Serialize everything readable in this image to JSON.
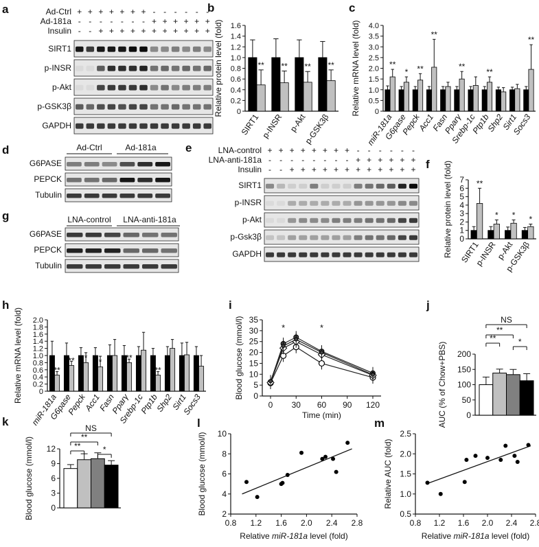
{
  "colors": {
    "black": "#000000",
    "gray": "#c0c0c0",
    "darkgray": "#808080",
    "white": "#ffffff"
  },
  "panel_labels": [
    "a",
    "b",
    "c",
    "d",
    "e",
    "f",
    "g",
    "h",
    "i",
    "j",
    "k",
    "l",
    "m"
  ],
  "blots": {
    "a": {
      "rows": [
        "Ad-Ctrl",
        "Ad-181a",
        "Insulin"
      ],
      "signs": [
        [
          "+",
          "+",
          "+",
          "+",
          "+",
          "+",
          "+",
          "-",
          "-",
          "-",
          "-",
          "-",
          "-"
        ],
        [
          "-",
          "-",
          "-",
          "-",
          "-",
          "-",
          "-",
          "+",
          "+",
          "+",
          "+",
          "+",
          "+"
        ],
        [
          "-",
          "-",
          "+",
          "+",
          "+",
          "+",
          "+",
          "+",
          "+",
          "+",
          "+",
          "+",
          "+"
        ]
      ],
      "bands": [
        "SIRT1",
        "p-INSR",
        "p-Akt",
        "p-GSK3β",
        "GAPDH"
      ]
    },
    "d": {
      "groups": [
        "Ad-Ctrl",
        "Ad-181a"
      ],
      "bands": [
        "G6PASE",
        "PEPCK",
        "Tubulin"
      ]
    },
    "e": {
      "rows": [
        "LNA-control",
        "LNA-anti-181a",
        "Insulin"
      ],
      "signs": [
        [
          "+",
          "+",
          "+",
          "+",
          "+",
          "+",
          "+",
          "+",
          "-",
          "-",
          "-",
          "-",
          "-",
          "-"
        ],
        [
          "-",
          "-",
          "-",
          "-",
          "-",
          "-",
          "-",
          "-",
          "+",
          "+",
          "+",
          "+",
          "+",
          "+"
        ],
        [
          "-",
          "-",
          "+",
          "+",
          "+",
          "+",
          "+",
          "+",
          "+",
          "+",
          "+",
          "+",
          "+",
          "+"
        ]
      ],
      "bands": [
        "SIRT1",
        "p-INSR",
        "p-Akt",
        "p-Gsk3β",
        "GAPDH"
      ]
    },
    "g": {
      "groups": [
        "LNA-control",
        "LNA-anti-181a"
      ],
      "bands": [
        "G6PASE",
        "PEPCK",
        "Tubulin"
      ]
    }
  },
  "chart_data": [
    {
      "id": "b",
      "type": "bar",
      "ylabel": "Relative protein level (fold)",
      "ylim": [
        0,
        1.6
      ],
      "yticks": [
        "0",
        "0.2",
        "0.4",
        "0.6",
        "0.8",
        "1.0",
        "1.2",
        "1.4",
        "1.6"
      ],
      "categories": [
        "SIRT1",
        "p-INSR",
        "p-Akt",
        "p-GSK3β"
      ],
      "series": [
        {
          "values": [
            1.0,
            1.0,
            1.0,
            1.0
          ],
          "err": [
            0.33,
            0.35,
            0.33,
            0.3
          ]
        },
        {
          "values": [
            0.49,
            0.53,
            0.54,
            0.57
          ],
          "err": [
            0.28,
            0.22,
            0.2,
            0.2
          ]
        }
      ],
      "stars": [
        "**",
        "**",
        "**",
        "**"
      ]
    },
    {
      "id": "c",
      "type": "bar",
      "ylabel": "Relative mRNA level (fold)",
      "ylim": [
        0,
        4.0
      ],
      "yticks": [
        "0",
        "0.5",
        "1.0",
        "1.5",
        "2.0",
        "2.5",
        "3.0",
        "3.5",
        "4.0"
      ],
      "categories": [
        "miR-181a",
        "G6pase",
        "Pepck",
        "Acc1",
        "Fasn",
        "Pparγ",
        "Srebp-1c",
        "Ptp1b",
        "Shp2",
        "Sirt1",
        "Socs3"
      ],
      "italic": true,
      "series": [
        {
          "values": [
            1.0,
            1.0,
            1.0,
            1.0,
            1.0,
            1.0,
            1.0,
            1.0,
            1.0,
            1.0,
            1.0
          ],
          "err": [
            0.18,
            0.15,
            0.15,
            0.15,
            0.15,
            0.15,
            0.15,
            0.15,
            0.12,
            0.12,
            0.15
          ]
        },
        {
          "values": [
            1.6,
            1.35,
            1.45,
            2.05,
            1.15,
            1.5,
            1.2,
            1.35,
            0.9,
            1.05,
            1.95
          ],
          "err": [
            0.35,
            0.25,
            0.3,
            1.3,
            0.2,
            0.35,
            0.4,
            0.25,
            0.2,
            0.2,
            1.15
          ]
        }
      ],
      "stars": [
        "**",
        "*",
        "**",
        "**",
        "",
        "**",
        "",
        "**",
        "",
        "",
        "**"
      ]
    },
    {
      "id": "f",
      "type": "bar",
      "ylabel": "Relative protein level (fold)",
      "ylim": [
        0,
        7
      ],
      "yticks": [
        "0",
        "1",
        "2",
        "3",
        "4",
        "5",
        "6",
        "7"
      ],
      "categories": [
        "SIRT1",
        "p-INSR",
        "p-Akt",
        "p-GSK3β"
      ],
      "series": [
        {
          "values": [
            1.0,
            1.0,
            1.0,
            1.0
          ],
          "err": [
            0.45,
            0.45,
            0.4,
            0.35
          ]
        },
        {
          "values": [
            4.2,
            1.75,
            1.85,
            1.45
          ],
          "err": [
            1.8,
            0.5,
            0.4,
            0.3
          ]
        }
      ],
      "stars": [
        "**",
        "*",
        "*",
        "*"
      ]
    },
    {
      "id": "h",
      "type": "bar",
      "ylabel": "Relative mRNA level (fold)",
      "ylim": [
        0,
        2.0
      ],
      "yticks": [
        "0",
        "0.2",
        "0.4",
        "0.6",
        "0.8",
        "1.0",
        "1.2",
        "1.4",
        "1.6",
        "1.8",
        "2.0"
      ],
      "categories": [
        "miR-181a",
        "G6pase",
        "Pepck",
        "Acc1",
        "Fasn",
        "Pparγ",
        "Srebp-1c",
        "Ptp1b",
        "Shp2",
        "Sirt1",
        "Socs3"
      ],
      "italic": true,
      "series": [
        {
          "values": [
            1.0,
            1.0,
            1.0,
            1.0,
            1.0,
            1.0,
            1.0,
            1.0,
            1.0,
            1.0,
            1.0
          ],
          "err": [
            0.4,
            0.35,
            0.22,
            0.22,
            0.3,
            0.28,
            0.25,
            0.2,
            0.25,
            0.35,
            0.25
          ]
        },
        {
          "values": [
            0.45,
            0.72,
            0.8,
            0.68,
            1.0,
            0.8,
            1.15,
            0.45,
            1.2,
            1.02,
            0.7
          ],
          "err": [
            0.1,
            0.12,
            0.28,
            0.3,
            0.45,
            0.1,
            0.5,
            0.1,
            0.25,
            0.35,
            0.3
          ]
        }
      ],
      "stars": [
        "**",
        "**",
        "*",
        "*",
        "",
        "**",
        "",
        "**",
        "",
        "",
        ""
      ]
    },
    {
      "id": "i",
      "type": "line",
      "xlabel": "Time (min)",
      "ylabel": "Blood glucose (mmol/l)",
      "xlim": [
        0,
        120
      ],
      "ylim": [
        0,
        35
      ],
      "xticks": [
        "0",
        "30",
        "60",
        "90",
        "120"
      ],
      "yticks": [
        "0",
        "5",
        "10",
        "15",
        "20",
        "25",
        "30",
        "35"
      ],
      "x": [
        0,
        15,
        30,
        60,
        120
      ],
      "series": [
        {
          "marker": "filled",
          "values": [
            6.5,
            24,
            27,
            20.5,
            10.5
          ]
        },
        {
          "marker": "open-circle",
          "values": [
            6.0,
            18.5,
            22.5,
            15,
            8.5
          ]
        },
        {
          "marker": "open-diamond",
          "values": [
            6.2,
            22,
            25,
            19,
            9.5
          ]
        },
        {
          "marker": "filled-small",
          "values": [
            6.8,
            23,
            26,
            20,
            9.8
          ]
        }
      ],
      "stars": [
        {
          "x": 15,
          "text": "*"
        },
        {
          "x": 60,
          "text": "*"
        }
      ]
    },
    {
      "id": "j",
      "type": "bar",
      "ylabel": "AUC (% of Chow+PBS)",
      "ylim": [
        0,
        200
      ],
      "yticks": [
        "0",
        "50",
        "100",
        "150",
        "200"
      ],
      "values": [
        100,
        138,
        133,
        113
      ],
      "err": [
        25,
        13,
        17,
        23
      ],
      "fills": [
        "#ffffff",
        "#c0c0c0",
        "#808080",
        "#000000"
      ],
      "brackets": [
        {
          "from": 0,
          "to": 3,
          "text": "NS"
        },
        {
          "from": 0,
          "to": 2,
          "text": "**"
        },
        {
          "from": 0,
          "to": 1,
          "text": "**"
        },
        {
          "from": 2,
          "to": 3,
          "text": "*"
        }
      ]
    },
    {
      "id": "k",
      "type": "bar",
      "ylabel": "Blood glucose (mmol/l)",
      "ylim": [
        0,
        12
      ],
      "yticks": [
        "0",
        "3",
        "6",
        "9",
        "12"
      ],
      "values": [
        8.0,
        9.8,
        10.0,
        8.7
      ],
      "err": [
        0.8,
        1.2,
        1.2,
        0.9
      ],
      "fills": [
        "#ffffff",
        "#c0c0c0",
        "#808080",
        "#000000"
      ],
      "brackets": [
        {
          "from": 0,
          "to": 3,
          "text": "NS"
        },
        {
          "from": 0,
          "to": 2,
          "text": "**"
        },
        {
          "from": 0,
          "to": 1,
          "text": "**"
        },
        {
          "from": 2,
          "to": 3,
          "text": "*"
        }
      ]
    },
    {
      "id": "l",
      "type": "scatter",
      "xlabel_pre": "Relative ",
      "xlabel_it": "miR-181a",
      "xlabel_post": " level (fold)",
      "ylabel": "Blood glucose (mmol/l)",
      "xlim": [
        0.8,
        2.8
      ],
      "ylim": [
        2,
        10
      ],
      "xticks": [
        "0.8",
        "1.2",
        "1.6",
        "2.0",
        "2.4",
        "2.8"
      ],
      "yticks": [
        "2",
        "4",
        "6",
        "8",
        "10"
      ],
      "points": [
        [
          1.05,
          5.2
        ],
        [
          1.22,
          3.7
        ],
        [
          1.6,
          5.0
        ],
        [
          1.62,
          5.1
        ],
        [
          1.7,
          5.9
        ],
        [
          1.92,
          8.1
        ],
        [
          2.25,
          7.5
        ],
        [
          2.3,
          7.7
        ],
        [
          2.42,
          7.5
        ],
        [
          2.47,
          6.2
        ],
        [
          2.65,
          9.1
        ]
      ],
      "fit": [
        [
          0.98,
          4.0
        ],
        [
          2.72,
          8.5
        ]
      ]
    },
    {
      "id": "m",
      "type": "scatter",
      "xlabel_pre": "Relative ",
      "xlabel_it": "miR-181a",
      "xlabel_post": " level (fold)",
      "ylabel": "Relative AUC (fold)",
      "xlim": [
        0.8,
        2.8
      ],
      "ylim": [
        0.5,
        2.5
      ],
      "xticks": [
        "0.8",
        "1.2",
        "1.6",
        "2.0",
        "2.4",
        "2.8"
      ],
      "yticks": [
        "0.5",
        "1.0",
        "1.5",
        "2.0",
        "2.5"
      ],
      "points": [
        [
          1.0,
          1.28
        ],
        [
          1.22,
          1.0
        ],
        [
          1.62,
          1.3
        ],
        [
          1.65,
          1.85
        ],
        [
          1.8,
          1.95
        ],
        [
          2.0,
          1.9
        ],
        [
          2.22,
          1.85
        ],
        [
          2.3,
          2.2
        ],
        [
          2.45,
          1.95
        ],
        [
          2.5,
          1.8
        ],
        [
          2.68,
          2.22
        ]
      ],
      "fit": [
        [
          0.98,
          1.25
        ],
        [
          2.72,
          2.2
        ]
      ]
    }
  ]
}
